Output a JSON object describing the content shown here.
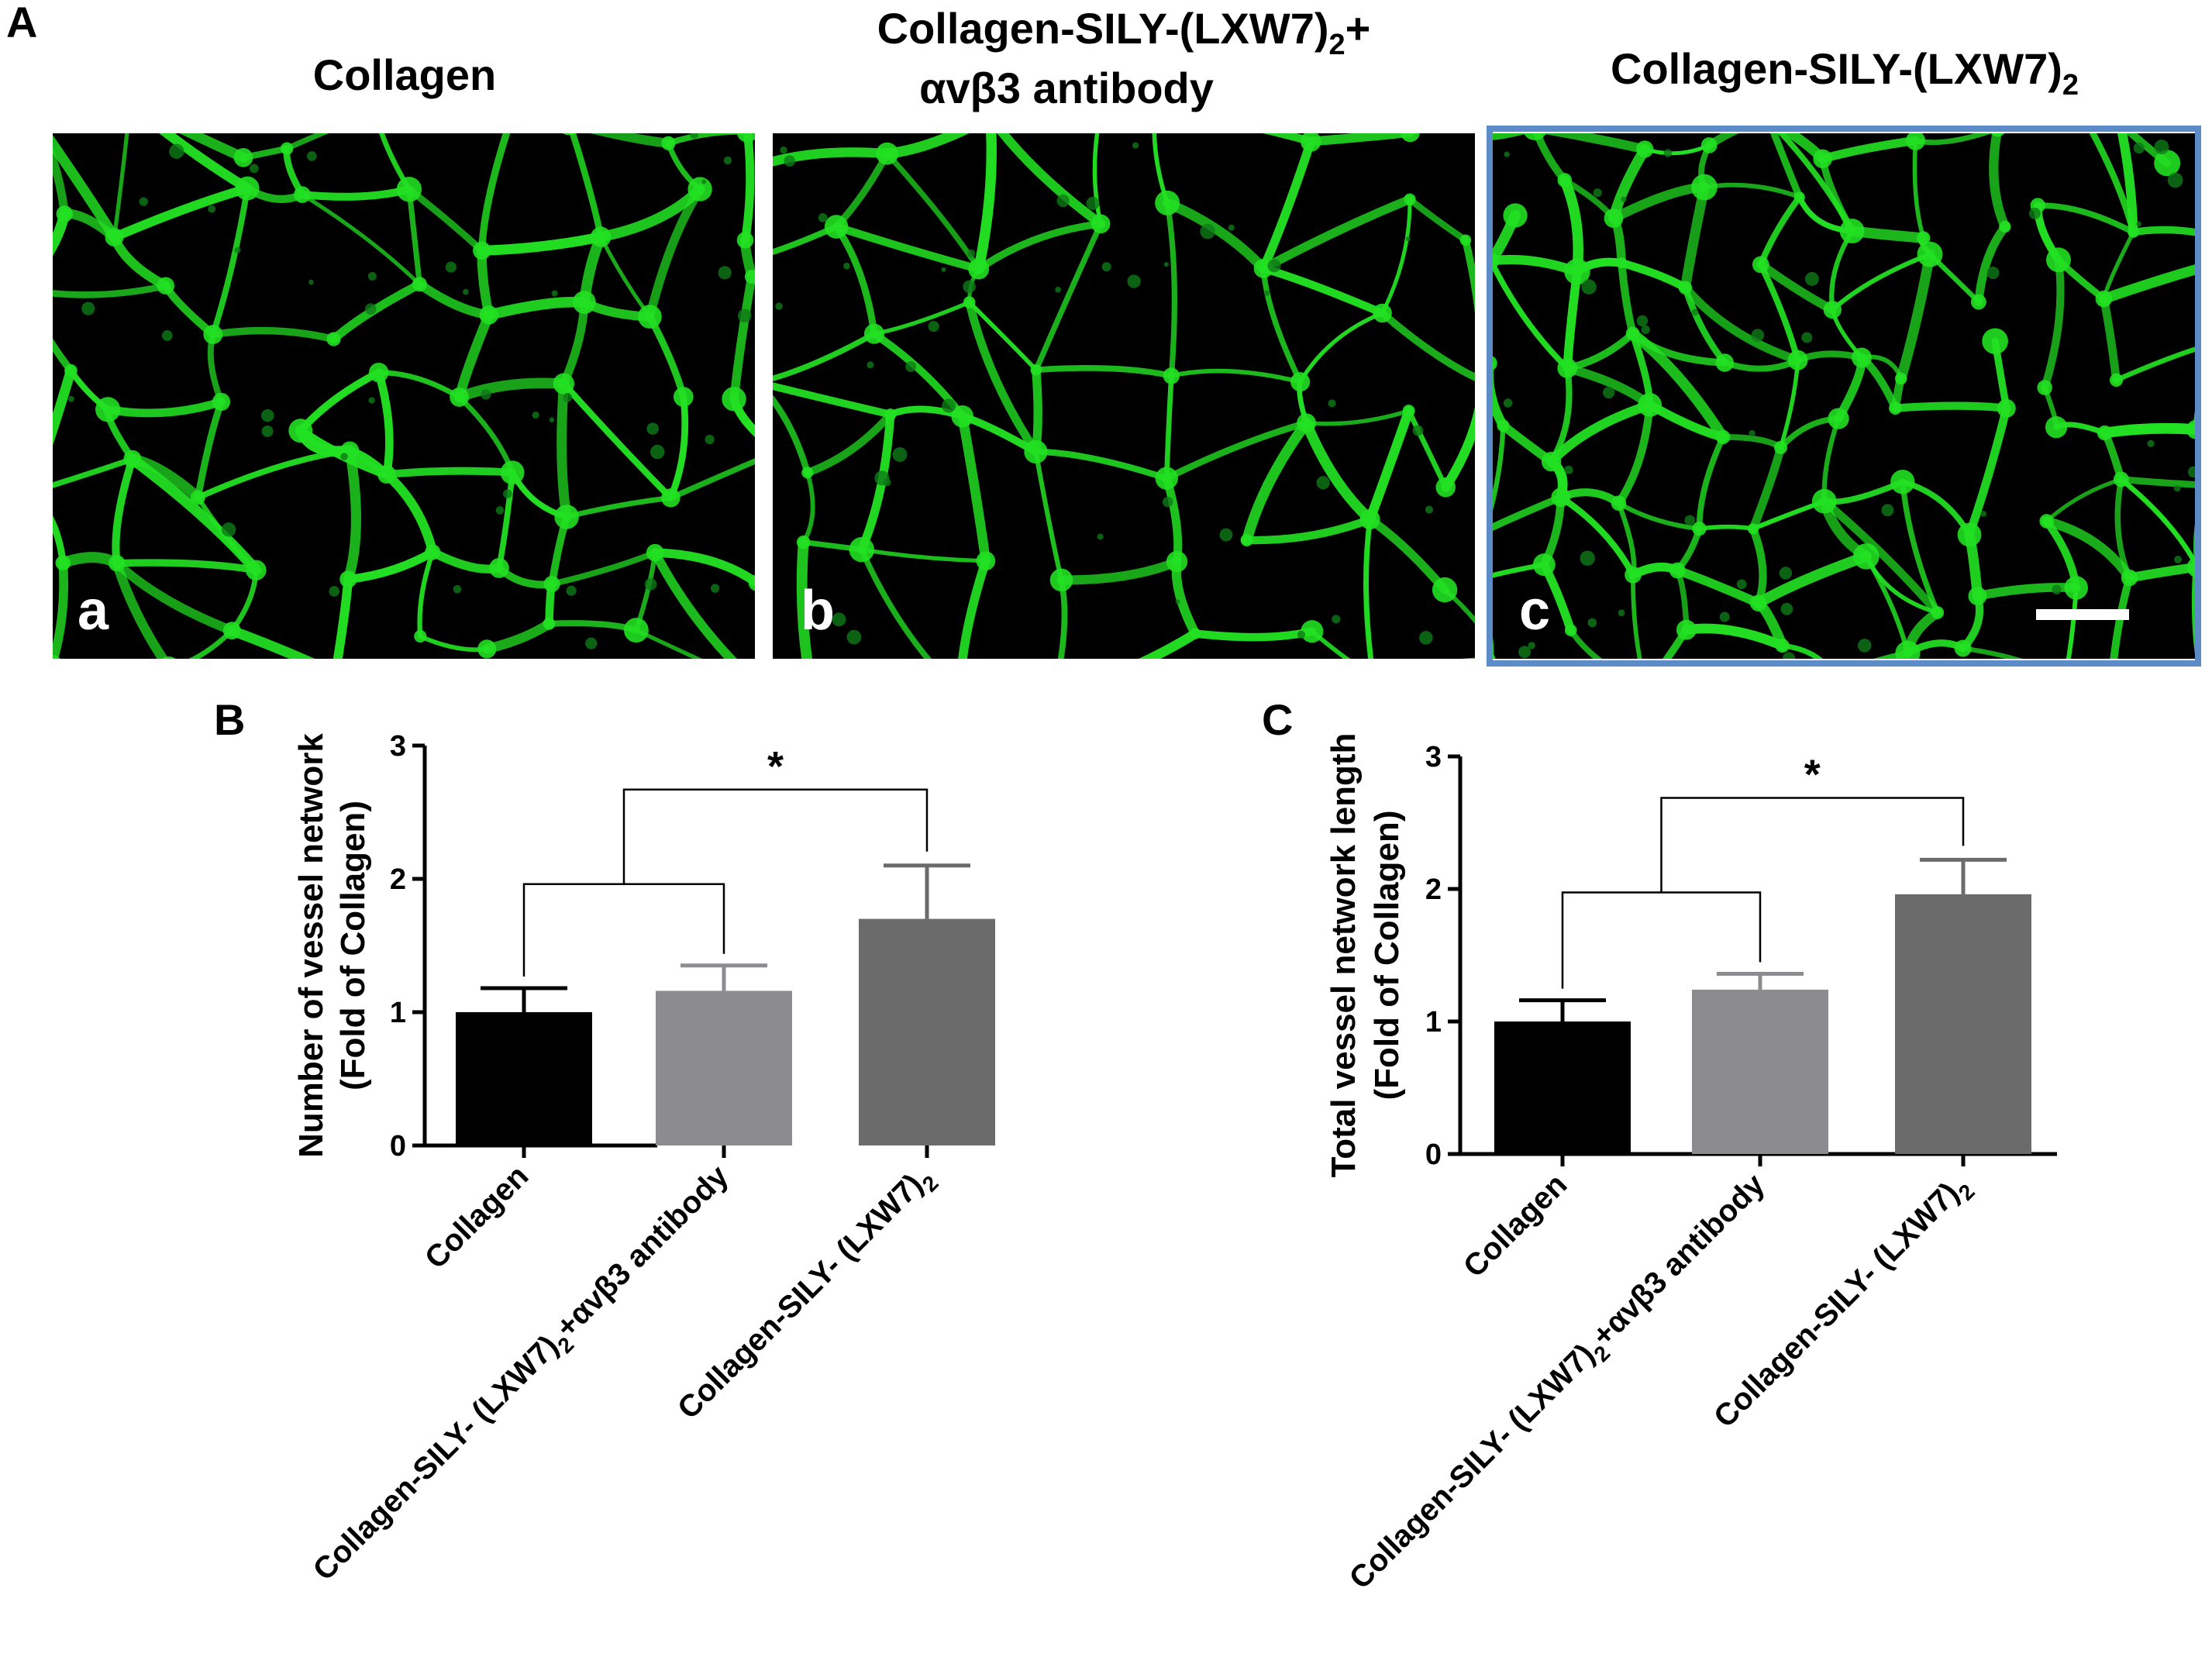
{
  "panel_letters": {
    "A": "A",
    "B": "B",
    "C": "C"
  },
  "panel_a": {
    "images": [
      {
        "title_line1": "Collagen",
        "title_line2": "",
        "label": "a",
        "highlighted": false
      },
      {
        "title_line1": "Collagen-SILY-(LXW7)",
        "title_sub1": "2",
        "title_tail1": "+",
        "title_line2": "αvβ3 antibody",
        "label": "b",
        "highlighted": false
      },
      {
        "title_line1": "Collagen-SILY-(LXW7)",
        "title_sub1": "2",
        "title_tail1": "",
        "title_line2": "",
        "label": "c",
        "highlighted": true
      }
    ],
    "image_content": "green fluorescent endothelial vessel network on black background",
    "highlight_color": "#5b8cc8",
    "fluorescence_color": "#22e022",
    "scale_bar": true
  },
  "colors": {
    "collagen": "#000000",
    "antibody": "#8c8c90",
    "lxw7": "#6b6b6b"
  },
  "cat_labels": [
    {
      "main": "Collagen",
      "sub": "",
      "tail": ""
    },
    {
      "main": "Collagen-SILY- (LXW7)",
      "sub": "2",
      "tail": "+αvβ3 antibody"
    },
    {
      "main": "Collagen-SILY- (LXW7)",
      "sub": "2",
      "tail": ""
    }
  ],
  "chart_data": [
    {
      "type": "bar",
      "panel": "B",
      "ylabel_line1": "Number of vessel network",
      "ylabel_line2": "(Fold of Collagen)",
      "ylim": [
        0,
        3
      ],
      "yticks": [
        "0",
        "1",
        "2",
        "3"
      ],
      "values": [
        1.0,
        1.16,
        1.7
      ],
      "errors": [
        0.18,
        0.19,
        0.4
      ],
      "significance": "*"
    },
    {
      "type": "bar",
      "panel": "C",
      "ylabel_line1": "Total vessel network length",
      "ylabel_line2": "(Fold of Collagen)",
      "ylim": [
        0,
        3
      ],
      "yticks": [
        "0",
        "1",
        "2",
        "3"
      ],
      "values": [
        1.0,
        1.24,
        1.96
      ],
      "errors": [
        0.16,
        0.12,
        0.26
      ],
      "significance": "*"
    }
  ]
}
